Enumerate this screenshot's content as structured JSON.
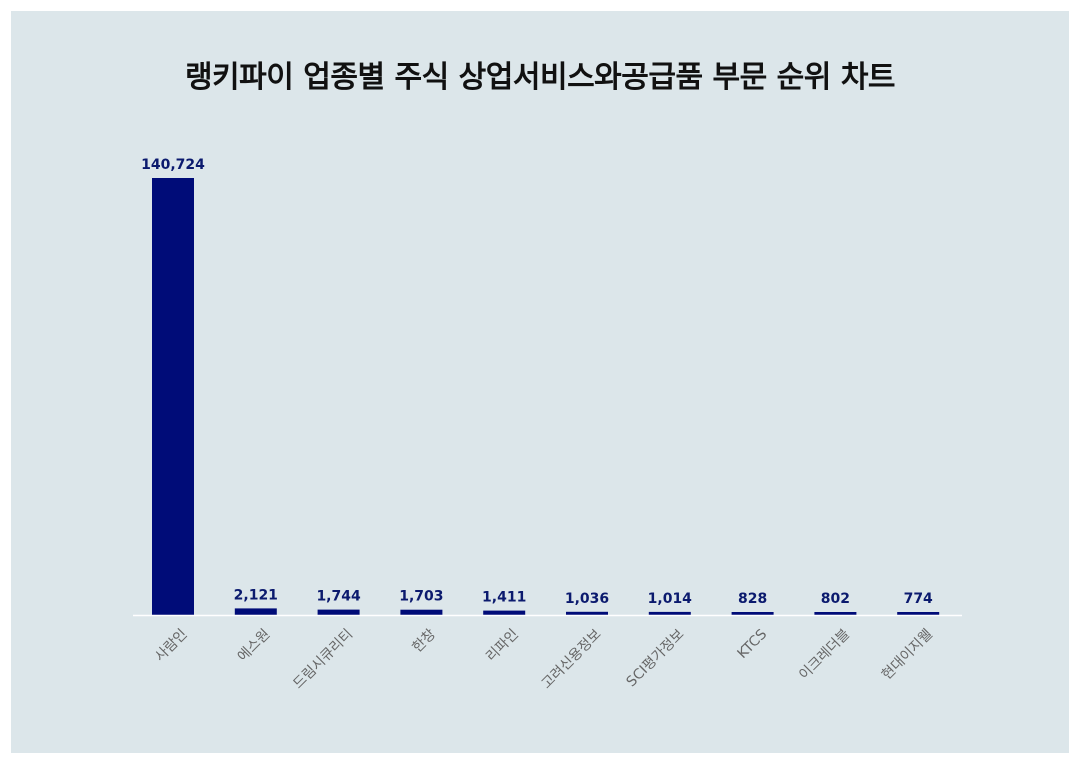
{
  "chart_data": {
    "type": "bar",
    "title": "랭키파이 업종별 주식 상업서비스와공급품 부문 순위 차트",
    "xlabel": "",
    "ylabel": "",
    "categories": [
      "사람인",
      "에스원",
      "드림시큐리티",
      "한창",
      "리파인",
      "고려신용정보",
      "SCI평가정보",
      "KTCS",
      "이크레더블",
      "현대이지웰"
    ],
    "values": [
      140724,
      2121,
      1744,
      1703,
      1411,
      1036,
      1014,
      828,
      802,
      774
    ],
    "value_labels": [
      "140,724",
      "2,121",
      "1,744",
      "1,703",
      "1,411",
      "1,036",
      "1,014",
      "828",
      "802",
      "774"
    ],
    "ylim": [
      0,
      140724
    ],
    "grid": false,
    "legend": "none",
    "colors": {
      "bar": "#000c78",
      "value_label": "#0b1a6e",
      "tick_label": "#666666",
      "baseline": "#ffffff",
      "panel_background": "#dce6ea"
    }
  }
}
